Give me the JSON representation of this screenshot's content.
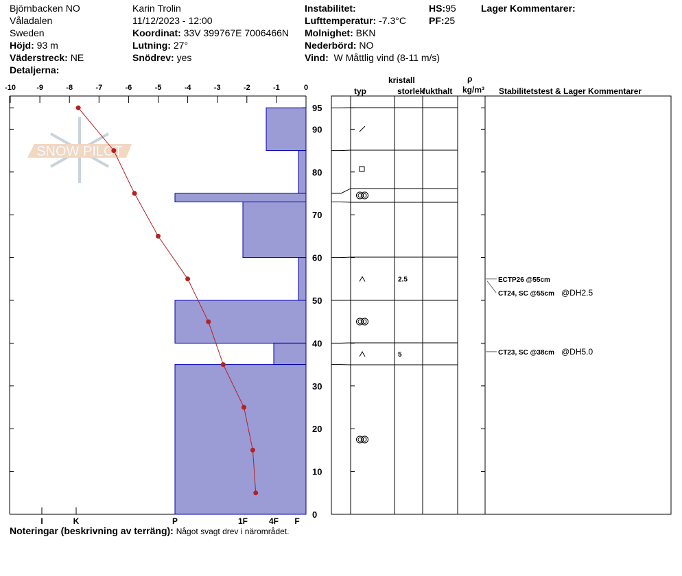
{
  "header": {
    "location": "Björnbacken NO",
    "area": "Våladalen",
    "country": "Sweden",
    "elevation_label": "Höjd:",
    "elevation": "93 m",
    "aspect_label": "Väderstreck:",
    "aspect": "NE",
    "details_label": "Detaljerna:",
    "observer": "Karin  Trolin",
    "datetime": "11/12/2023 - 12:00",
    "coord_label": "Koordinat:",
    "coord": "33V 399767E 7006466N",
    "slope_label": "Lutning:",
    "slope": "27°",
    "drift_label": "Snödrev:",
    "drift": "yes",
    "instability_label": "Instabilitet:",
    "airtemp_label": "Lufttemperatur:",
    "airtemp": "-7.3°C",
    "sky_label": "Molnighet:",
    "sky": "BKN",
    "precip_label": "Nederbörd:",
    "precip": "NO",
    "wind_label": "Vind:",
    "wind": "W Måttlig vind (8-11 m/s)",
    "hs_label": "HS:",
    "hs": "95",
    "pf_label": "PF:",
    "pf": "25",
    "layer_comments_label": "Lager Kommentarer:"
  },
  "notes": {
    "label": "Noteringar (beskrivning av terräng):",
    "text": "Något svagt drev i närområdet."
  },
  "table_headers": {
    "kristall": "kristall",
    "typ": "typ",
    "storlek": "storlek",
    "fukthalt": "fukthalt",
    "rho": "ρ",
    "density_unit": "kg/m³",
    "stability": "Stabilitetstest & Lager Kommentarer"
  },
  "watermark": "SNOW PILOT",
  "colors": {
    "layer_fill": "#9b9bd6",
    "layer_stroke": "#0000aa",
    "temp": "#b22222"
  },
  "chart_data": {
    "type": "snow-profile",
    "temp_axis": {
      "ticks": [
        "-10",
        "-9",
        "-8",
        "-7",
        "-6",
        "-5",
        "-4",
        "-3",
        "-2",
        "-1",
        "0"
      ],
      "range": [
        -10,
        0
      ]
    },
    "height_axis": {
      "ticks": [
        "95",
        "90",
        "80",
        "70",
        "60",
        "50",
        "40",
        "30",
        "20",
        "10",
        "0"
      ],
      "range": [
        0,
        95
      ]
    },
    "hardness_axis": {
      "ticks": [
        "I",
        "K",
        "P",
        "1F",
        "4F",
        "F"
      ]
    },
    "temperature_profile": [
      {
        "h": 95,
        "t": -7.7
      },
      {
        "h": 85,
        "t": -6.5
      },
      {
        "h": 75,
        "t": -5.8
      },
      {
        "h": 65,
        "t": -5.0
      },
      {
        "h": 55,
        "t": -4.0
      },
      {
        "h": 45,
        "t": -3.3
      },
      {
        "h": 35,
        "t": -2.8
      },
      {
        "h": 25,
        "t": -2.1
      },
      {
        "h": 15,
        "t": -1.8
      },
      {
        "h": 5,
        "t": -1.7
      }
    ],
    "layers": [
      {
        "top": 95,
        "bottom": 85,
        "hardness": "4F-",
        "grain": "fragmented"
      },
      {
        "top": 85,
        "bottom": 75,
        "hardness": "F+",
        "grain": "faceted"
      },
      {
        "top": 75,
        "bottom": 73,
        "hardness": "P",
        "grain": "melt-freeze"
      },
      {
        "top": 73,
        "bottom": 60,
        "hardness": "1F",
        "grain": ""
      },
      {
        "top": 60,
        "bottom": 50,
        "hardness": "F+",
        "grain": "depth-hoar",
        "size": "2.5"
      },
      {
        "top": 50,
        "bottom": 40,
        "hardness": "P",
        "grain": "melt-freeze"
      },
      {
        "top": 40,
        "bottom": 35,
        "hardness": "4F",
        "grain": "depth-hoar",
        "size": "5"
      },
      {
        "top": 35,
        "bottom": 0,
        "hardness": "P",
        "grain": "melt-freeze"
      }
    ],
    "stability_tests": [
      {
        "h": 55,
        "text": "ECTP26 @55cm",
        "extra": ""
      },
      {
        "h": 55,
        "text": "CT24, SC @55cm",
        "extra": "@DH2.5"
      },
      {
        "h": 38,
        "text": "CT23, SC @38cm",
        "extra": "@DH5.0"
      }
    ]
  }
}
